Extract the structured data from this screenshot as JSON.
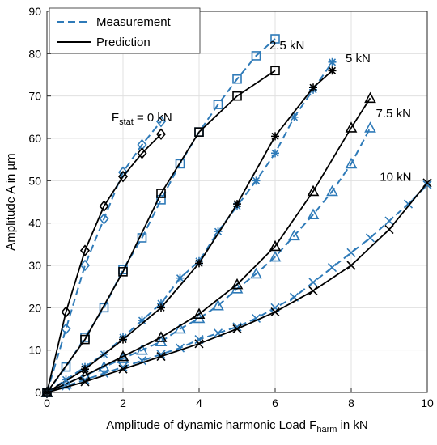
{
  "chart_data": {
    "type": "line",
    "title": "",
    "xlabel": "Amplitude of dynamic harmonic Load F",
    "xlabel_sub": "harm",
    "xlabel_suffix": " in kN",
    "ylabel": "Amplitude A in µm",
    "xlim": [
      0,
      10
    ],
    "ylim": [
      0,
      90
    ],
    "xticks": [
      0,
      2,
      4,
      6,
      8,
      10
    ],
    "yticks": [
      0,
      10,
      20,
      30,
      40,
      50,
      60,
      70,
      80,
      90
    ],
    "grid": true,
    "legend": {
      "position": "top-left",
      "entries": [
        {
          "name": "Measurement",
          "style": "dashed",
          "color": "#2e7ab8"
        },
        {
          "name": "Prediction",
          "style": "solid",
          "color": "#000000"
        }
      ]
    },
    "colors": {
      "measurement": "#2e7ab8",
      "prediction": "#000000"
    },
    "annotations": [
      {
        "text": "F",
        "sub": "stat",
        "suffix": " = 0 kN",
        "at": [
          1.7,
          64
        ]
      },
      {
        "text": "2.5 kN",
        "at": [
          5.85,
          81
        ]
      },
      {
        "text": "5 kN",
        "at": [
          7.85,
          78
        ]
      },
      {
        "text": "7.5 kN",
        "at": [
          8.65,
          65
        ]
      },
      {
        "text": "10 kN",
        "at": [
          8.75,
          50
        ]
      }
    ],
    "series": [
      {
        "group": "Measurement",
        "load": "0 kN",
        "marker": "diamond",
        "x": [
          0,
          0.5,
          1,
          1.5,
          2,
          2.5,
          3
        ],
        "y": [
          0,
          15,
          30,
          41,
          52,
          58.5,
          64
        ]
      },
      {
        "group": "Prediction",
        "load": "0 kN",
        "marker": "diamond",
        "x": [
          0,
          0.5,
          1,
          1.5,
          2,
          2.5,
          3
        ],
        "y": [
          0,
          19,
          33.5,
          44,
          51,
          56.5,
          61
        ]
      },
      {
        "group": "Measurement",
        "load": "2.5 kN",
        "marker": "square",
        "x": [
          0,
          0.5,
          1,
          1.5,
          2,
          2.5,
          3,
          3.5,
          4,
          4.5,
          5,
          5.5,
          6
        ],
        "y": [
          0,
          6,
          13,
          20,
          29,
          36.5,
          45.5,
          54,
          61.5,
          68,
          74,
          79.5,
          83.5
        ]
      },
      {
        "group": "Prediction",
        "load": "2.5 kN",
        "marker": "square",
        "x": [
          0,
          1,
          2,
          3,
          4,
          5,
          6
        ],
        "y": [
          0,
          12.5,
          28.5,
          47,
          61.5,
          70,
          76
        ]
      },
      {
        "group": "Measurement",
        "load": "5 kN",
        "marker": "asterisk",
        "x": [
          0,
          0.5,
          1,
          1.5,
          2,
          2.5,
          3,
          3.5,
          4,
          4.5,
          5,
          5.5,
          6,
          6.5,
          7,
          7.5
        ],
        "y": [
          0,
          3,
          6,
          9,
          13,
          17,
          21,
          27,
          31,
          38,
          44,
          50,
          56.5,
          65,
          71.5,
          78
        ]
      },
      {
        "group": "Prediction",
        "load": "5 kN",
        "marker": "asterisk",
        "x": [
          0,
          1,
          2,
          3,
          4,
          5,
          6,
          7,
          7.5
        ],
        "y": [
          0,
          5.5,
          12.5,
          20,
          30.5,
          44.5,
          60.5,
          72,
          76
        ]
      },
      {
        "group": "Measurement",
        "load": "7.5 kN",
        "marker": "triangle",
        "x": [
          0,
          0.5,
          1,
          1.5,
          2,
          2.5,
          3,
          3.5,
          4,
          4.5,
          5,
          5.5,
          6,
          6.5,
          7,
          7.5,
          8,
          8.5
        ],
        "y": [
          0,
          2,
          4,
          6,
          8,
          10,
          12,
          15,
          17.5,
          20.5,
          24.5,
          28,
          32,
          37,
          42,
          47.5,
          54,
          62.5
        ]
      },
      {
        "group": "Prediction",
        "load": "7.5 kN",
        "marker": "triangle",
        "x": [
          0,
          1,
          2,
          3,
          4,
          5,
          6,
          7,
          8,
          8.5
        ],
        "y": [
          0,
          4,
          8.5,
          13,
          18.5,
          25.5,
          34.5,
          47.5,
          62.5,
          69.5
        ]
      },
      {
        "group": "Measurement",
        "load": "10 kN",
        "marker": "x",
        "x": [
          0,
          0.5,
          1,
          1.5,
          2,
          2.5,
          3,
          3.5,
          4,
          4.5,
          5,
          5.5,
          6,
          6.5,
          7,
          7.5,
          8,
          8.5,
          9,
          9.5,
          10
        ],
        "y": [
          0,
          1.5,
          3,
          4.5,
          6,
          7.5,
          9,
          10.5,
          12.5,
          14,
          15.5,
          17.5,
          20,
          22.5,
          26,
          29.5,
          33,
          36.5,
          40.5,
          44.5,
          49
        ]
      },
      {
        "group": "Prediction",
        "load": "10 kN",
        "marker": "x",
        "x": [
          0,
          1,
          2,
          3,
          4,
          5,
          6,
          7,
          8,
          9,
          10
        ],
        "y": [
          0,
          2.5,
          5.5,
          8.5,
          11.5,
          15,
          19,
          24,
          30,
          38.5,
          49.5
        ]
      }
    ]
  }
}
